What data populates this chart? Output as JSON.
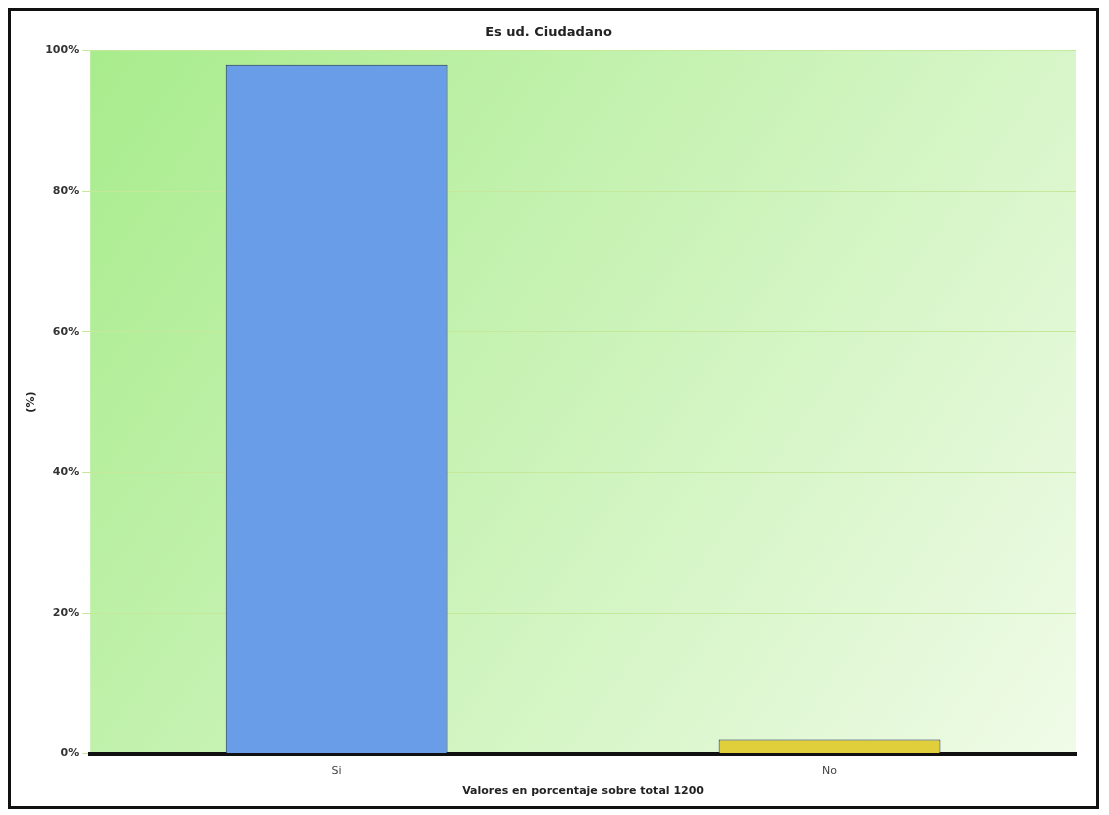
{
  "chart_data": {
    "type": "bar",
    "title": "Es ud. Ciudadano",
    "xlabel": "Valores en porcentaje sobre total 1200",
    "ylabel": "(%)",
    "categories": [
      "Si",
      "No"
    ],
    "values": [
      98,
      2
    ],
    "colors": [
      "#6a9de8",
      "#e0cf3a"
    ],
    "ylim": [
      0,
      100
    ],
    "yticks": [
      {
        "value": 0,
        "label": "0%"
      },
      {
        "value": 20,
        "label": "20%"
      },
      {
        "value": 40,
        "label": "40%"
      },
      {
        "value": 60,
        "label": "60%"
      },
      {
        "value": 80,
        "label": "80%"
      },
      {
        "value": 100,
        "label": "100%"
      }
    ],
    "grid": "y",
    "legend": false
  }
}
